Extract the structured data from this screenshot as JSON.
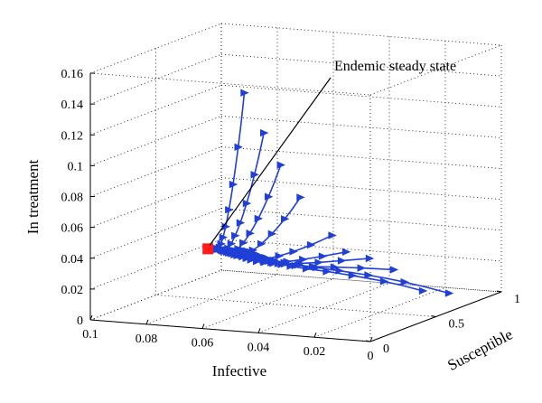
{
  "chart_data": {
    "type": "line",
    "subtype": "3d-trajectories",
    "xlabel": "Infective",
    "ylabel": "Susceptible",
    "zlabel": "In treatment",
    "x_ticks": [
      "0.1",
      "0.08",
      "0.06",
      "0.04",
      "0.02",
      "0"
    ],
    "y_ticks": [
      "0",
      "0.5",
      "1"
    ],
    "z_ticks": [
      "0",
      "0.02",
      "0.04",
      "0.06",
      "0.08",
      "0.1",
      "0.12",
      "0.14",
      "0.16"
    ],
    "xlim": [
      0,
      0.1
    ],
    "ylim": [
      0,
      1
    ],
    "zlim": [
      0,
      0.16
    ],
    "grid": true,
    "marker": "triangle",
    "colors": {
      "series": "#1f3fd6",
      "equilibrium": "#ff1a1a"
    },
    "annotation": {
      "text": "Endemic steady state"
    },
    "equilibrium": {
      "I": 0.058,
      "S": 0.0,
      "T": 0.052
    },
    "series": [
      {
        "start": {
          "I": 0.045,
          "S": 0.0,
          "T": 0.155
        }
      },
      {
        "start": {
          "I": 0.038,
          "S": 0.0,
          "T": 0.13
        }
      },
      {
        "start": {
          "I": 0.032,
          "S": 0.0,
          "T": 0.11
        }
      },
      {
        "start": {
          "I": 0.025,
          "S": 0.0,
          "T": 0.09
        }
      },
      {
        "start": {
          "I": 0.016,
          "S": 0.05,
          "T": 0.065
        }
      },
      {
        "start": {
          "I": 0.011,
          "S": 0.05,
          "T": 0.055
        }
      },
      {
        "start": {
          "I": 0.005,
          "S": 0.1,
          "T": 0.05
        }
      },
      {
        "start": {
          "I": 0.001,
          "S": 0.2,
          "T": 0.04
        }
      },
      {
        "start": {
          "I": 0.0,
          "S": 0.4,
          "T": 0.02
        }
      },
      {
        "start": {
          "I": 0.0,
          "S": 0.6,
          "T": 0.012
        }
      }
    ]
  }
}
